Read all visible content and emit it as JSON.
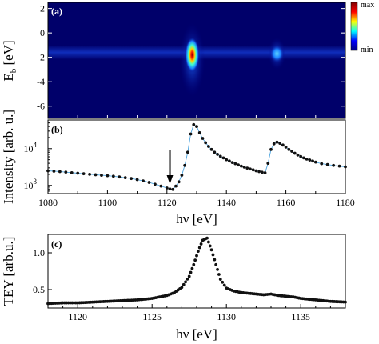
{
  "chart_data": [
    {
      "panel": "(a)",
      "type": "heatmap",
      "ylabel": "E_b [eV]",
      "ylabel_main": "E",
      "ylabel_sub": "b",
      "ylabel_unit": "[eV]",
      "ylim": [
        -7,
        2.5
      ],
      "xlim": [
        1080,
        1180
      ],
      "yticks": [
        "2",
        "0",
        "-2",
        "-4",
        "-6"
      ],
      "colorbar_labels": {
        "max": "max",
        "min": "min"
      },
      "colormap": [
        "#00007f",
        "#0000ff",
        "#00ffff",
        "#ffff00",
        "#ff0000",
        "#7f0000"
      ],
      "features": [
        {
          "x": 1128.5,
          "y": -1.8,
          "intensity": 1.0
        },
        {
          "x": 1157,
          "y": -1.7,
          "intensity": 0.5
        }
      ],
      "band_y": -1.6
    },
    {
      "panel": "(b)",
      "type": "scatter",
      "xlabel": "hν [eV]",
      "ylabel": "Intensity [arb. u.]",
      "yscale": "log",
      "xlim": [
        1080,
        1180
      ],
      "ylim": [
        600,
        60000
      ],
      "xticks": [
        "1080",
        "1100",
        "1120",
        "1140",
        "1160",
        "1180"
      ],
      "yticks": [
        {
          "base": "10",
          "exp": "4"
        },
        {
          "base": "10",
          "exp": "3"
        }
      ],
      "arrow_at_x": 1121,
      "series": [
        {
          "x": [
            1080,
            1082,
            1084,
            1086,
            1088,
            1090,
            1092,
            1094,
            1096,
            1098,
            1100,
            1102,
            1104,
            1106,
            1108,
            1110,
            1112,
            1114,
            1116,
            1118,
            1120,
            1121,
            1122,
            1123,
            1124,
            1125,
            1126,
            1127,
            1128,
            1129,
            1130,
            1131,
            1132,
            1133,
            1134,
            1135,
            1136,
            1137,
            1138,
            1139,
            1140,
            1141,
            1142,
            1143,
            1144,
            1145,
            1146,
            1147,
            1148,
            1149,
            1150,
            1151,
            1152,
            1153,
            1154,
            1155,
            1156,
            1157,
            1158,
            1159,
            1160,
            1161,
            1162,
            1163,
            1164,
            1165,
            1166,
            1167,
            1168,
            1169,
            1170,
            1172,
            1174,
            1176,
            1178,
            1180
          ],
          "y": [
            2500,
            2440,
            2380,
            2300,
            2220,
            2150,
            2080,
            2010,
            1950,
            1890,
            1840,
            1780,
            1700,
            1620,
            1540,
            1440,
            1330,
            1210,
            1080,
            960,
            850,
            800,
            780,
            960,
            1250,
            1900,
            3500,
            8000,
            25000,
            45000,
            40000,
            27000,
            19000,
            14500,
            11500,
            9500,
            8000,
            7000,
            6200,
            5600,
            5000,
            4600,
            4200,
            3900,
            3600,
            3350,
            3150,
            2950,
            2800,
            2650,
            2500,
            2380,
            2280,
            2200,
            4000,
            9500,
            13500,
            15000,
            14000,
            12500,
            11000,
            9500,
            8500,
            7500,
            6700,
            6100,
            5600,
            5200,
            4900,
            4600,
            4300,
            3900,
            3700,
            3500,
            3350,
            3200
          ]
        }
      ]
    },
    {
      "panel": "(c)",
      "type": "scatter",
      "xlabel": "hν [eV]",
      "ylabel": "TEY [arb.u.]",
      "xlim": [
        1118,
        1138
      ],
      "ylim": [
        0.25,
        1.25
      ],
      "xticks": [
        "1120",
        "1125",
        "1130",
        "1135"
      ],
      "yticks": [
        "1.0",
        "0.5"
      ],
      "series": [
        {
          "x": [
            1118,
            1119,
            1120,
            1121,
            1122,
            1123,
            1124,
            1125,
            1126,
            1126.5,
            1127,
            1127.5,
            1127.8,
            1128.1,
            1128.4,
            1128.7,
            1129,
            1129.3,
            1129.6,
            1130,
            1130.5,
            1131,
            1131.5,
            1132,
            1132.5,
            1133,
            1133.5,
            1134,
            1134.5,
            1135,
            1135.5,
            1136,
            1136.5,
            1137,
            1138
          ],
          "y": [
            0.31,
            0.32,
            0.32,
            0.33,
            0.34,
            0.35,
            0.36,
            0.38,
            0.42,
            0.46,
            0.53,
            0.68,
            0.84,
            1.02,
            1.17,
            1.2,
            1.04,
            0.84,
            0.64,
            0.52,
            0.48,
            0.46,
            0.45,
            0.44,
            0.43,
            0.44,
            0.42,
            0.41,
            0.4,
            0.38,
            0.37,
            0.36,
            0.35,
            0.34,
            0.33
          ]
        }
      ]
    }
  ]
}
